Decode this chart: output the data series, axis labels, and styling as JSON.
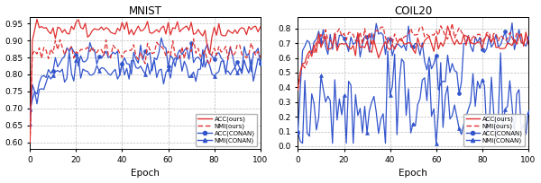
{
  "mnist_title": "MNIST",
  "coil20_title": "COIL20",
  "xlabel": "Epoch",
  "legend_labels": [
    "ACC(ours)",
    "NMI(ours)",
    "ACC(CONAN)",
    "NMI(CONAN)"
  ],
  "mnist_ylim": [
    0.58,
    0.97
  ],
  "mnist_yticks": [
    0.6,
    0.65,
    0.7,
    0.75,
    0.8,
    0.85,
    0.9,
    0.95
  ],
  "coil20_ylim": [
    -0.02,
    0.88
  ],
  "coil20_yticks": [
    0.0,
    0.1,
    0.2,
    0.3,
    0.4,
    0.5,
    0.6,
    0.7,
    0.8
  ],
  "xlim": [
    0,
    100
  ],
  "xticks": [
    0,
    20,
    40,
    60,
    80,
    100
  ],
  "colors": {
    "acc_ours": "#e03030",
    "nmi_ours": "#e03030",
    "acc_conan": "#3355cc",
    "nmi_conan": "#3355cc"
  },
  "n_epochs": 100,
  "figsize": [
    6.0,
    2.04
  ],
  "dpi": 100
}
